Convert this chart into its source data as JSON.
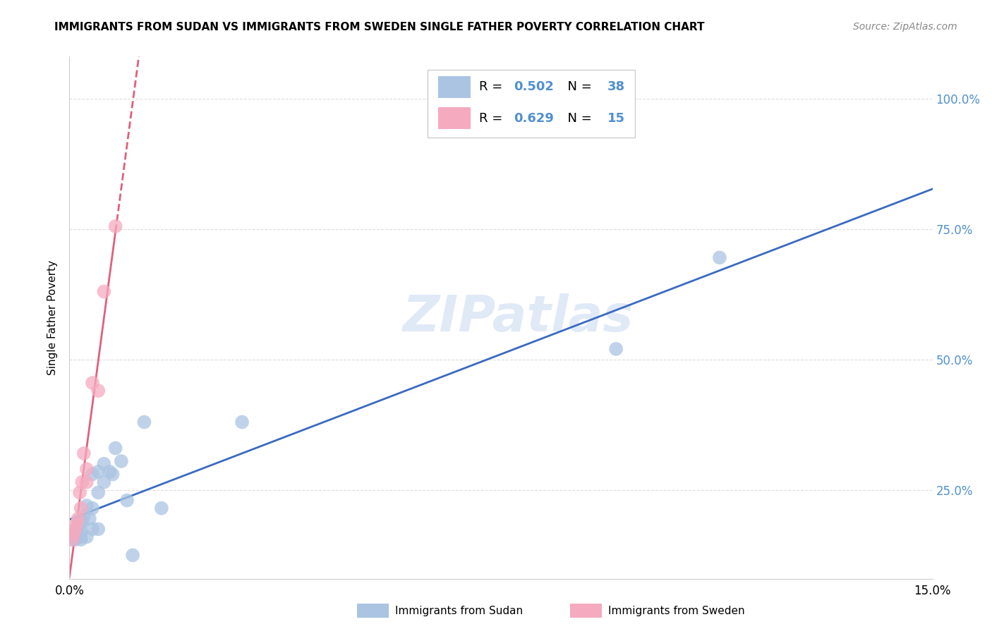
{
  "title": "IMMIGRANTS FROM SUDAN VS IMMIGRANTS FROM SWEDEN SINGLE FATHER POVERTY CORRELATION CHART",
  "source": "Source: ZipAtlas.com",
  "ylabel": "Single Father Poverty",
  "sudan_R": 0.502,
  "sudan_N": 38,
  "sweden_R": 0.629,
  "sweden_N": 15,
  "sudan_color": "#aac4e2",
  "sweden_color": "#f5aabf",
  "sudan_line_color": "#3a6abf",
  "sweden_line_color": "#e0607a",
  "sudan_x": [
    0.0005,
    0.0005,
    0.0008,
    0.001,
    0.001,
    0.001,
    0.0012,
    0.0013,
    0.0015,
    0.0015,
    0.002,
    0.002,
    0.002,
    0.002,
    0.0022,
    0.0025,
    0.003,
    0.003,
    0.0035,
    0.004,
    0.004,
    0.004,
    0.005,
    0.005,
    0.005,
    0.006,
    0.006,
    0.007,
    0.0075,
    0.008,
    0.009,
    0.01,
    0.011,
    0.013,
    0.016,
    0.03,
    0.095,
    0.113
  ],
  "sudan_y": [
    0.155,
    0.165,
    0.16,
    0.155,
    0.16,
    0.17,
    0.17,
    0.175,
    0.18,
    0.19,
    0.155,
    0.16,
    0.17,
    0.185,
    0.19,
    0.2,
    0.16,
    0.22,
    0.195,
    0.175,
    0.215,
    0.28,
    0.175,
    0.245,
    0.285,
    0.265,
    0.3,
    0.285,
    0.28,
    0.33,
    0.305,
    0.23,
    0.125,
    0.38,
    0.215,
    0.38,
    0.52,
    0.695
  ],
  "sweden_x": [
    0.0005,
    0.0007,
    0.001,
    0.0012,
    0.0015,
    0.0018,
    0.002,
    0.0022,
    0.0025,
    0.003,
    0.003,
    0.004,
    0.005,
    0.006,
    0.008
  ],
  "sweden_y": [
    0.155,
    0.165,
    0.175,
    0.185,
    0.195,
    0.245,
    0.215,
    0.265,
    0.32,
    0.265,
    0.29,
    0.455,
    0.44,
    0.63,
    0.755
  ],
  "watermark_text": "ZIPatlas",
  "legend_sudan_label": "Immigrants from Sudan",
  "legend_sweden_label": "Immigrants from Sweden",
  "background_color": "#ffffff",
  "grid_color": "#dddddd",
  "right_axis_color": "#5090d0",
  "xlim": [
    0.0,
    0.15
  ],
  "ylim": [
    0.08,
    1.08
  ],
  "ytick_positions": [
    0.25,
    0.5,
    0.75,
    1.0
  ],
  "ytick_labels": [
    "25.0%",
    "50.0%",
    "75.0%",
    "100.0%"
  ],
  "xtick_positions": [
    0.0,
    0.03,
    0.06,
    0.09,
    0.12,
    0.15
  ],
  "xtick_labels": [
    "0.0%",
    "",
    "",
    "",
    "",
    "15.0%"
  ]
}
